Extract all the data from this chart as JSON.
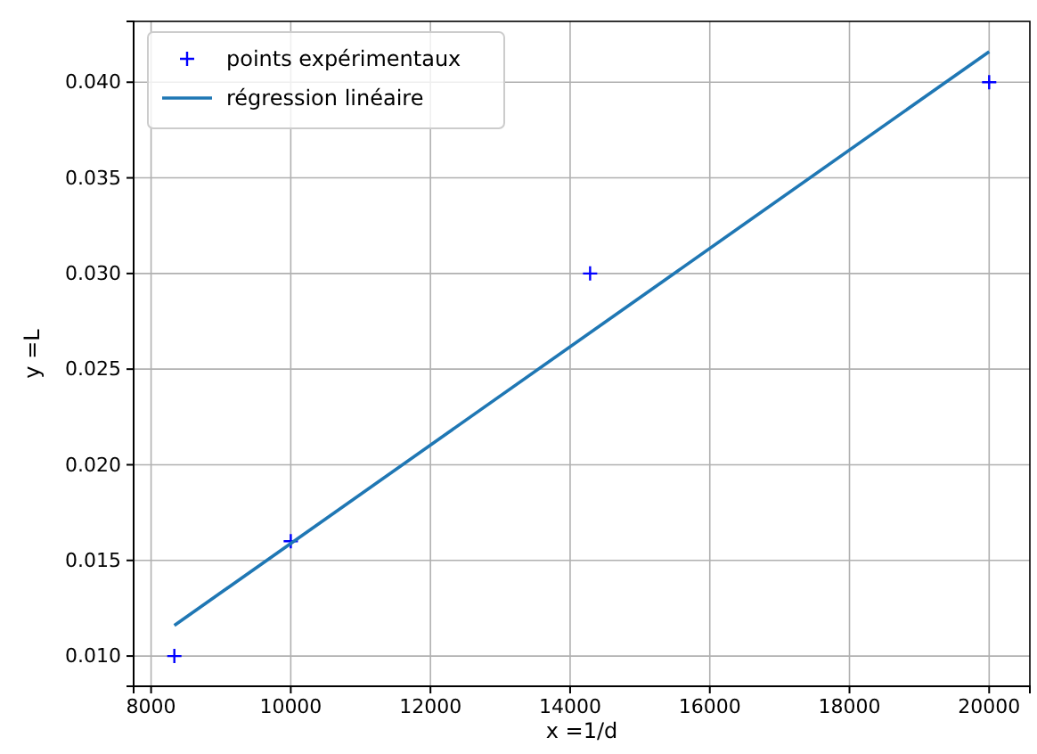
{
  "chart_data": {
    "type": "scatter",
    "xlabel": "x =1/d",
    "ylabel": "y =L",
    "xlim": [
      7750,
      20583
    ],
    "ylim": [
      0.00842,
      0.04318
    ],
    "xticks": [
      8000,
      10000,
      12000,
      14000,
      16000,
      18000,
      20000
    ],
    "yticks": [
      {
        "value": 0.01,
        "label": "0.010"
      },
      {
        "value": 0.015,
        "label": "0.015"
      },
      {
        "value": 0.02,
        "label": "0.020"
      },
      {
        "value": 0.025,
        "label": "0.025"
      },
      {
        "value": 0.03,
        "label": "0.030"
      },
      {
        "value": 0.035,
        "label": "0.035"
      },
      {
        "value": 0.04,
        "label": "0.040"
      }
    ],
    "grid": true,
    "legend": "top left",
    "series": [
      {
        "name": "points expérimentaux",
        "type": "scatter",
        "marker": "cross",
        "color": "#0000ff",
        "x": [
          8333,
          10000,
          14286,
          20000
        ],
        "values": [
          0.01,
          0.016,
          0.03,
          0.04
        ]
      },
      {
        "name": "régression linéaire",
        "type": "line",
        "line_style": "solid",
        "color": "#1f77b4",
        "x": [
          8333,
          20000
        ],
        "values": [
          0.0116,
          0.0416
        ]
      }
    ]
  }
}
